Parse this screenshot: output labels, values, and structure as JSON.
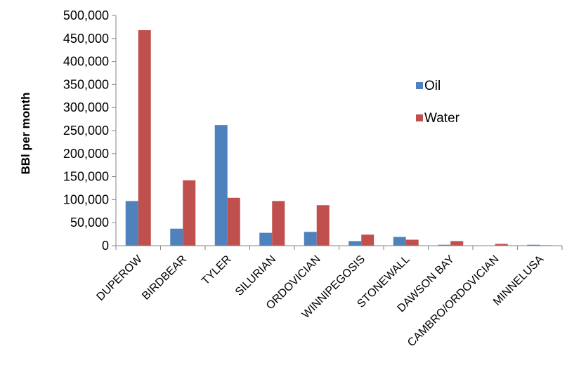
{
  "chart_data": {
    "type": "bar",
    "title": "",
    "xlabel": "",
    "ylabel": "BBl per month",
    "ylim": [
      0,
      500000
    ],
    "yticks": [
      0,
      50000,
      100000,
      150000,
      200000,
      250000,
      300000,
      350000,
      400000,
      450000,
      500000
    ],
    "ytick_labels": [
      "0",
      "50,000",
      "100,000",
      "150,000",
      "200,000",
      "250,000",
      "300,000",
      "350,000",
      "400,000",
      "450,000",
      "500,000"
    ],
    "grid": false,
    "legend_position": "right",
    "categories": [
      "DUPEROW",
      "BIRDBEAR",
      "TYLER",
      "SILURIAN",
      "ORDOVICIAN",
      "WINNIPEGOSIS",
      "STONEWALL",
      "DAWSON BAY",
      "CAMBRO/ORDOVICIAN",
      "MINNELUSA"
    ],
    "series": [
      {
        "name": "Oil",
        "color": "#4f81bd",
        "values": [
          97000,
          37000,
          262000,
          28000,
          30000,
          10000,
          19000,
          2000,
          500,
          2000
        ]
      },
      {
        "name": "Water",
        "color": "#c0504d",
        "values": [
          468000,
          142000,
          104000,
          97000,
          88000,
          24000,
          13000,
          10000,
          4000,
          1000
        ]
      }
    ]
  }
}
